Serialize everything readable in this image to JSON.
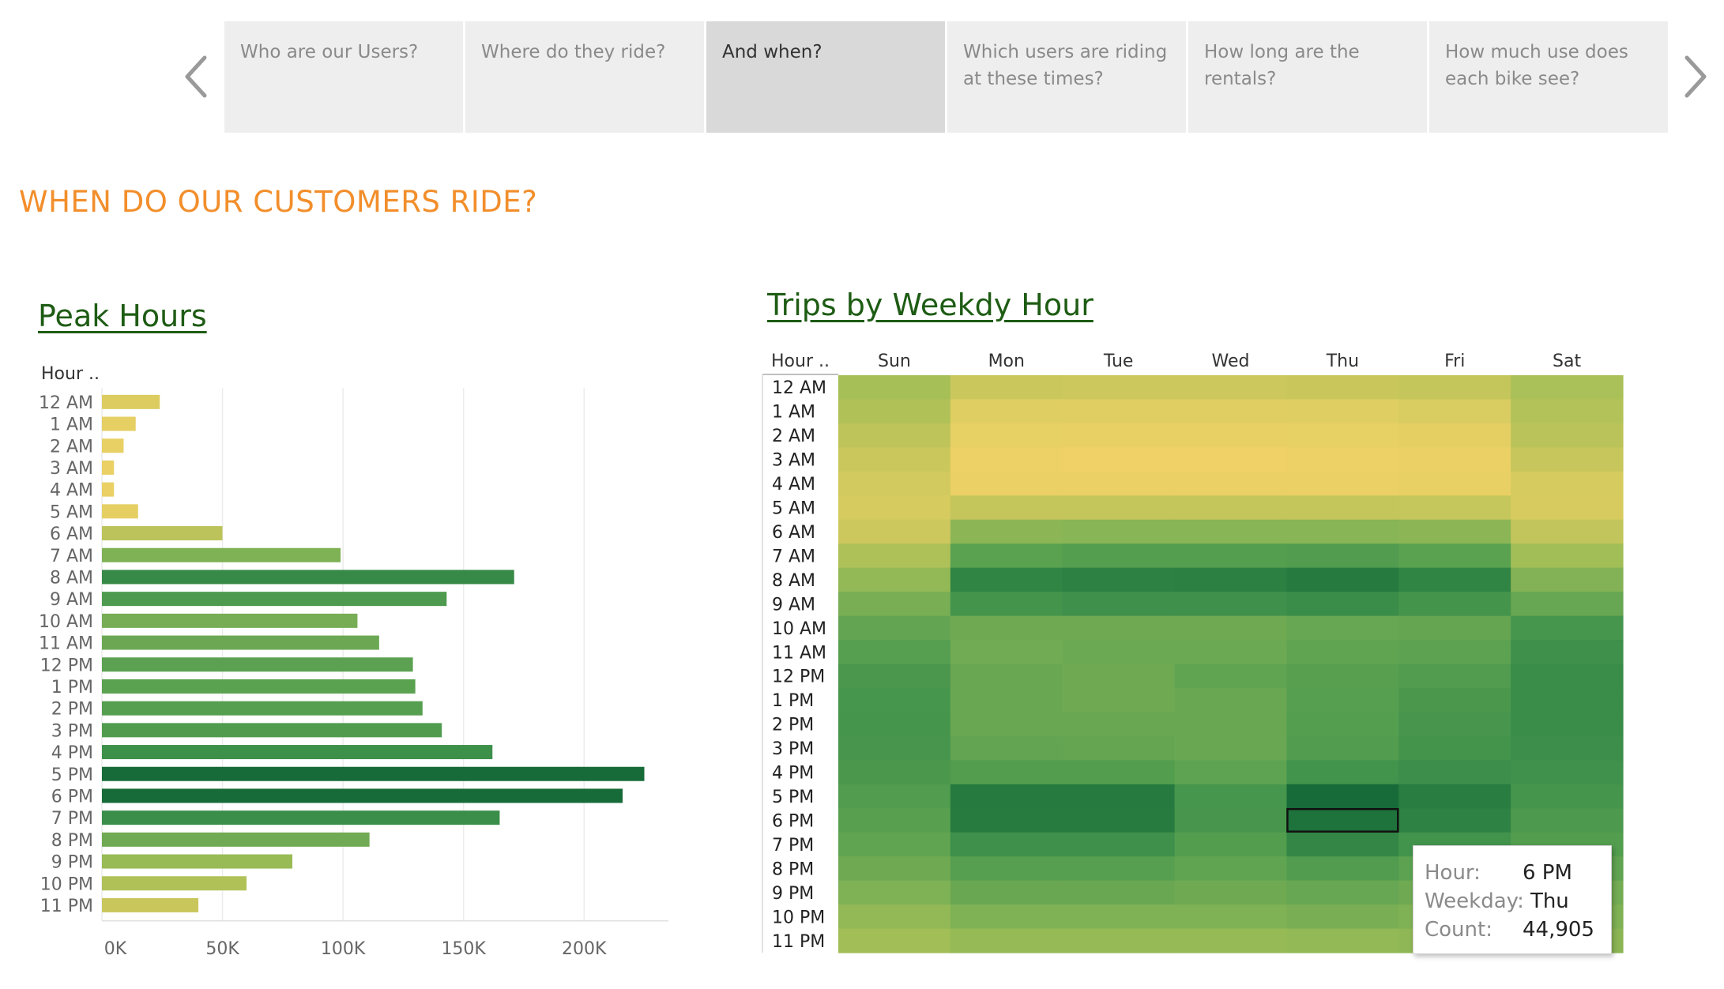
{
  "story": {
    "points": [
      {
        "label": "Who are our Users?",
        "active": false
      },
      {
        "label": "Where do they ride?",
        "active": false
      },
      {
        "label": "And when?",
        "active": true
      },
      {
        "label": "Which users are riding at these times?",
        "active": false
      },
      {
        "label": "How long are the rentals?",
        "active": false
      },
      {
        "label": "How much use does each bike see?",
        "active": false
      }
    ],
    "prev_icon": "chevron-left-icon",
    "next_icon": "chevron-right-icon"
  },
  "page_title": "WHEN DO OUR CUSTOMERS RIDE?",
  "tooltip": {
    "hour_label": "Hour:",
    "hour_value": "6 PM",
    "weekday_label": "Weekday:",
    "weekday_value": "Thu",
    "count_label": "Count:",
    "count_value": "44,905"
  },
  "chart_data": [
    {
      "type": "bar",
      "orientation": "horizontal",
      "title": "Peak Hours",
      "ylabel": "Hour ..",
      "categories": [
        "12 AM",
        "1 AM",
        "2 AM",
        "3 AM",
        "4 AM",
        "5 AM",
        "6 AM",
        "7 AM",
        "8 AM",
        "9 AM",
        "10 AM",
        "11 AM",
        "12 PM",
        "1 PM",
        "2 PM",
        "3 PM",
        "4 PM",
        "5 PM",
        "6 PM",
        "7 PM",
        "8 PM",
        "9 PM",
        "10 PM",
        "11 PM"
      ],
      "values": [
        24000,
        14000,
        9000,
        5000,
        5000,
        15000,
        50000,
        99000,
        171000,
        143000,
        106000,
        115000,
        129000,
        130000,
        133000,
        141000,
        162000,
        225000,
        216000,
        165000,
        111000,
        79000,
        60000,
        40000
      ],
      "xticks": [
        "0K",
        "50K",
        "100K",
        "150K",
        "200K"
      ],
      "xlim": [
        0,
        235000
      ],
      "grid": "vertical",
      "color_scale": [
        "#ead16b",
        "#176b38"
      ]
    },
    {
      "type": "heatmap",
      "title": "Trips by Weekdy Hour",
      "ylabel": "Hour ..",
      "x": [
        "Sun",
        "Mon",
        "Tue",
        "Wed",
        "Thu",
        "Fri",
        "Sat"
      ],
      "y": [
        "12 AM",
        "1 AM",
        "2 AM",
        "3 AM",
        "4 AM",
        "5 AM",
        "6 AM",
        "7 AM",
        "8 AM",
        "9 AM",
        "10 AM",
        "11 AM",
        "12 PM",
        "1 PM",
        "2 PM",
        "3 PM",
        "4 PM",
        "5 PM",
        "6 PM",
        "7 PM",
        "8 PM",
        "9 PM",
        "10 PM",
        "11 PM"
      ],
      "values": [
        [
          6000,
          2500,
          2300,
          2400,
          2600,
          3000,
          5500
        ],
        [
          4800,
          1300,
          1200,
          1200,
          1300,
          1600,
          4500
        ],
        [
          3500,
          700,
          600,
          600,
          700,
          900,
          3800
        ],
        [
          2500,
          400,
          350,
          350,
          400,
          500,
          2800
        ],
        [
          2000,
          500,
          450,
          450,
          500,
          600,
          1800
        ],
        [
          1800,
          3000,
          3000,
          3000,
          3000,
          2900,
          1700
        ],
        [
          2400,
          9500,
          10000,
          10000,
          10000,
          9500,
          3200
        ],
        [
          5000,
          19000,
          20500,
          20500,
          21500,
          19000,
          6500
        ],
        [
          8500,
          34000,
          36000,
          36500,
          40000,
          34000,
          11000
        ],
        [
          12500,
          26000,
          28000,
          28000,
          30000,
          26000,
          16000
        ],
        [
          17000,
          14500,
          14500,
          14500,
          16000,
          16500,
          25000
        ],
        [
          20000,
          14000,
          15000,
          15000,
          17500,
          18500,
          28000
        ],
        [
          24000,
          15500,
          14500,
          17500,
          19500,
          21500,
          30000
        ],
        [
          25000,
          15500,
          14500,
          15500,
          20000,
          23500,
          30000
        ],
        [
          25500,
          15500,
          15500,
          15500,
          20500,
          24500,
          30000
        ],
        [
          24500,
          17000,
          16500,
          15500,
          21500,
          26000,
          29000
        ],
        [
          23500,
          21000,
          21000,
          18000,
          26500,
          29000,
          27500
        ],
        [
          21500,
          40000,
          40000,
          25000,
          49000,
          38000,
          25500
        ],
        [
          19500,
          39500,
          39500,
          24500,
          44905,
          35500,
          23000
        ],
        [
          17500,
          28000,
          28000,
          21000,
          33000,
          26500,
          21000
        ],
        [
          14500,
          20000,
          20000,
          17500,
          21500,
          18500,
          17500
        ],
        [
          11500,
          15500,
          15500,
          14500,
          16000,
          14500,
          13500
        ],
        [
          8500,
          11500,
          11500,
          11500,
          12500,
          11500,
          11500
        ],
        [
          6500,
          8000,
          8000,
          8000,
          8500,
          9000,
          9500
        ]
      ],
      "highlight": {
        "x": "Thu",
        "y": "6 PM"
      },
      "color_scale": [
        "#f0d167",
        "#176b38"
      ]
    }
  ]
}
